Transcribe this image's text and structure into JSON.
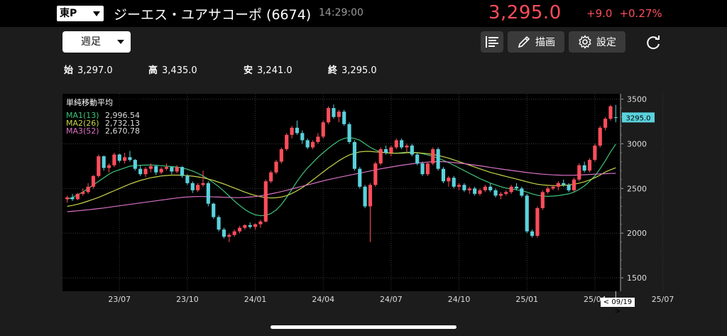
{
  "header": {
    "market": "東P",
    "stock_name": "ジーエス・ユアサコーポ (6674)",
    "time": "14:29:00",
    "price": "3,295.0",
    "change_abs": "+9.0",
    "change_pct": "+0.27%"
  },
  "toolbar": {
    "period": "週足",
    "draw_label": "描画",
    "settings_label": "設定"
  },
  "ohlc": {
    "open_label": "始",
    "open": "3,297.0",
    "high_label": "高",
    "high": "3,435.0",
    "low_label": "安",
    "low": "3,241.0",
    "close_label": "終",
    "close": "3,295.0"
  },
  "legend": {
    "title": "単純移動平均",
    "ma1_label": "MA1(13)",
    "ma1_value": "2,996.54",
    "ma2_label": "MA2(26)",
    "ma2_value": "2,732.13",
    "ma3_label": "MA3(52)",
    "ma3_value": "2,670.78"
  },
  "date_tag": "< 09/19 >",
  "colors": {
    "up": "#ff4d5b",
    "down": "#5ad2dc",
    "ma1": "#3ec47a",
    "ma2": "#c9d64a",
    "ma3": "#d972c6"
  },
  "chart_data": {
    "type": "candlestick",
    "current_price_label": "3295.0",
    "ylim": [
      1350,
      3560
    ],
    "y_ticks": [
      1500,
      2000,
      2500,
      3000,
      3500
    ],
    "x_ticks": [
      {
        "label": "23/07",
        "index": 10
      },
      {
        "label": "23/10",
        "index": 23
      },
      {
        "label": "24/01",
        "index": 36
      },
      {
        "label": "24/04",
        "index": 49
      },
      {
        "label": "24/07",
        "index": 62
      },
      {
        "label": "24/10",
        "index": 75
      },
      {
        "label": "25/01",
        "index": 88
      },
      {
        "label": "25/04",
        "index": 101
      },
      {
        "label": "25/07",
        "index": 114
      }
    ],
    "candles": [
      [
        2380,
        2420,
        2340,
        2400
      ],
      [
        2400,
        2440,
        2360,
        2380
      ],
      [
        2380,
        2450,
        2370,
        2440
      ],
      [
        2440,
        2500,
        2420,
        2460
      ],
      [
        2460,
        2560,
        2440,
        2520
      ],
      [
        2520,
        2650,
        2500,
        2640
      ],
      [
        2640,
        2880,
        2620,
        2860
      ],
      [
        2860,
        2870,
        2700,
        2730
      ],
      [
        2730,
        2780,
        2680,
        2760
      ],
      [
        2760,
        2900,
        2740,
        2880
      ],
      [
        2880,
        2890,
        2790,
        2810
      ],
      [
        2810,
        2900,
        2780,
        2850
      ],
      [
        2850,
        2920,
        2800,
        2820
      ],
      [
        2820,
        2830,
        2700,
        2720
      ],
      [
        2720,
        2760,
        2640,
        2660
      ],
      [
        2660,
        2740,
        2630,
        2720
      ],
      [
        2720,
        2780,
        2680,
        2750
      ],
      [
        2750,
        2760,
        2650,
        2680
      ],
      [
        2680,
        2740,
        2660,
        2720
      ],
      [
        2720,
        2780,
        2700,
        2740
      ],
      [
        2740,
        2750,
        2660,
        2690
      ],
      [
        2690,
        2760,
        2670,
        2740
      ],
      [
        2740,
        2750,
        2620,
        2640
      ],
      [
        2640,
        2660,
        2540,
        2560
      ],
      [
        2560,
        2580,
        2450,
        2480
      ],
      [
        2480,
        2560,
        2460,
        2540
      ],
      [
        2540,
        2700,
        2520,
        2560
      ],
      [
        2560,
        2580,
        2300,
        2330
      ],
      [
        2330,
        2340,
        2160,
        2180
      ],
      [
        2180,
        2200,
        2020,
        2040
      ],
      [
        2040,
        2060,
        1940,
        1960
      ],
      [
        1960,
        2000,
        1900,
        1980
      ],
      [
        1980,
        2040,
        1960,
        2020
      ],
      [
        2020,
        2080,
        2000,
        2060
      ],
      [
        2060,
        2100,
        2040,
        2090
      ],
      [
        2090,
        2120,
        2050,
        2070
      ],
      [
        2070,
        2110,
        2040,
        2100
      ],
      [
        2100,
        2150,
        2060,
        2130
      ],
      [
        2130,
        2600,
        2120,
        2580
      ],
      [
        2580,
        2700,
        2560,
        2680
      ],
      [
        2680,
        2820,
        2660,
        2800
      ],
      [
        2800,
        2960,
        2780,
        2940
      ],
      [
        2940,
        3120,
        2920,
        3100
      ],
      [
        3100,
        3200,
        3060,
        3180
      ],
      [
        3180,
        3260,
        3100,
        3120
      ],
      [
        3120,
        3150,
        3000,
        3040
      ],
      [
        3040,
        3060,
        2940,
        2960
      ],
      [
        2960,
        3040,
        2940,
        3020
      ],
      [
        3020,
        3120,
        3000,
        3080
      ],
      [
        3080,
        3260,
        3060,
        3240
      ],
      [
        3240,
        3420,
        3220,
        3400
      ],
      [
        3400,
        3440,
        3280,
        3300
      ],
      [
        3300,
        3380,
        3240,
        3360
      ],
      [
        3360,
        3380,
        3200,
        3220
      ],
      [
        3220,
        3240,
        3000,
        3020
      ],
      [
        3020,
        3040,
        2700,
        2720
      ],
      [
        2720,
        2740,
        2500,
        2520
      ],
      [
        2520,
        2540,
        2280,
        2300
      ],
      [
        2300,
        2560,
        1900,
        2540
      ],
      [
        2540,
        2800,
        2520,
        2780
      ],
      [
        2780,
        2960,
        2760,
        2940
      ],
      [
        2940,
        2980,
        2880,
        2900
      ],
      [
        2900,
        2980,
        2860,
        2960
      ],
      [
        2960,
        3060,
        2940,
        3040
      ],
      [
        3040,
        3060,
        2940,
        2960
      ],
      [
        2960,
        3000,
        2900,
        2980
      ],
      [
        2980,
        3000,
        2860,
        2880
      ],
      [
        2880,
        2900,
        2760,
        2780
      ],
      [
        2780,
        2800,
        2640,
        2660
      ],
      [
        2660,
        2800,
        2640,
        2780
      ],
      [
        2780,
        2960,
        2760,
        2940
      ],
      [
        2940,
        2960,
        2700,
        2720
      ],
      [
        2720,
        2740,
        2560,
        2580
      ],
      [
        2580,
        2640,
        2520,
        2620
      ],
      [
        2620,
        2640,
        2500,
        2520
      ],
      [
        2520,
        2560,
        2480,
        2540
      ],
      [
        2540,
        2560,
        2460,
        2480
      ],
      [
        2480,
        2520,
        2440,
        2500
      ],
      [
        2500,
        2520,
        2420,
        2440
      ],
      [
        2440,
        2500,
        2420,
        2480
      ],
      [
        2480,
        2540,
        2460,
        2520
      ],
      [
        2520,
        2560,
        2460,
        2480
      ],
      [
        2480,
        2500,
        2400,
        2420
      ],
      [
        2420,
        2460,
        2380,
        2440
      ],
      [
        2440,
        2480,
        2420,
        2460
      ],
      [
        2460,
        2540,
        2440,
        2520
      ],
      [
        2520,
        2560,
        2480,
        2500
      ],
      [
        2500,
        2520,
        2400,
        2420
      ],
      [
        2420,
        2440,
        2000,
        2020
      ],
      [
        2020,
        2040,
        1950,
        1970
      ],
      [
        1970,
        2300,
        1950,
        2280
      ],
      [
        2280,
        2480,
        2260,
        2460
      ],
      [
        2460,
        2520,
        2440,
        2500
      ],
      [
        2500,
        2540,
        2480,
        2520
      ],
      [
        2520,
        2580,
        2480,
        2560
      ],
      [
        2560,
        2600,
        2520,
        2540
      ],
      [
        2540,
        2560,
        2460,
        2480
      ],
      [
        2480,
        2620,
        2460,
        2600
      ],
      [
        2600,
        2780,
        2580,
        2760
      ],
      [
        2760,
        2800,
        2680,
        2700
      ],
      [
        2700,
        2840,
        2680,
        2820
      ],
      [
        2820,
        3000,
        2800,
        2980
      ],
      [
        2980,
        3200,
        2960,
        3180
      ],
      [
        3180,
        3300,
        3150,
        3280
      ],
      [
        3280,
        3435,
        3260,
        3420
      ],
      [
        3297,
        3435,
        3241,
        3295
      ]
    ],
    "ma_series": [
      {
        "name": "MA1(13)",
        "values": [
          2380,
          2400,
          2430,
          2460,
          2500,
          2540,
          2580,
          2620,
          2660,
          2690,
          2710,
          2730,
          2750,
          2755,
          2760,
          2762,
          2763,
          2760,
          2755,
          2750,
          2745,
          2740,
          2730,
          2715,
          2695,
          2670,
          2640,
          2605,
          2565,
          2520,
          2470,
          2415,
          2360,
          2310,
          2265,
          2230,
          2205,
          2195,
          2200,
          2220,
          2260,
          2320,
          2400,
          2490,
          2580,
          2660,
          2730,
          2790,
          2850,
          2900,
          2950,
          2995,
          3035,
          3060,
          3070,
          3060,
          3040,
          3000,
          2960,
          2930,
          2910,
          2900,
          2895,
          2895,
          2900,
          2905,
          2905,
          2900,
          2890,
          2875,
          2860,
          2840,
          2815,
          2790,
          2760,
          2730,
          2700,
          2670,
          2640,
          2610,
          2585,
          2560,
          2540,
          2520,
          2505,
          2495,
          2485,
          2475,
          2460,
          2440,
          2425,
          2415,
          2412,
          2415,
          2420,
          2430,
          2440,
          2460,
          2490,
          2530,
          2580,
          2640,
          2720,
          2810,
          2910,
          2996
        ]
      },
      {
        "name": "MA2(26)",
        "values": [
          2300,
          2310,
          2325,
          2340,
          2360,
          2380,
          2400,
          2425,
          2450,
          2475,
          2500,
          2525,
          2550,
          2570,
          2590,
          2605,
          2620,
          2630,
          2640,
          2645,
          2650,
          2650,
          2648,
          2644,
          2638,
          2630,
          2620,
          2605,
          2590,
          2570,
          2550,
          2528,
          2505,
          2482,
          2460,
          2440,
          2422,
          2408,
          2398,
          2394,
          2396,
          2405,
          2420,
          2445,
          2475,
          2510,
          2550,
          2595,
          2640,
          2685,
          2730,
          2770,
          2810,
          2845,
          2875,
          2895,
          2910,
          2915,
          2915,
          2910,
          2905,
          2900,
          2895,
          2895,
          2895,
          2900,
          2900,
          2900,
          2895,
          2890,
          2880,
          2870,
          2855,
          2840,
          2820,
          2800,
          2780,
          2760,
          2740,
          2720,
          2700,
          2680,
          2665,
          2650,
          2635,
          2620,
          2605,
          2590,
          2575,
          2560,
          2548,
          2540,
          2535,
          2532,
          2532,
          2535,
          2540,
          2548,
          2560,
          2575,
          2595,
          2620,
          2650,
          2685,
          2710,
          2732
        ]
      },
      {
        "name": "MA3(52)",
        "values": [
          2240,
          2245,
          2250,
          2256,
          2262,
          2268,
          2275,
          2282,
          2290,
          2298,
          2306,
          2314,
          2322,
          2330,
          2338,
          2346,
          2354,
          2362,
          2370,
          2378,
          2386,
          2394,
          2400,
          2405,
          2408,
          2410,
          2410,
          2408,
          2406,
          2404,
          2402,
          2400,
          2398,
          2398,
          2400,
          2404,
          2410,
          2418,
          2428,
          2440,
          2452,
          2465,
          2480,
          2495,
          2510,
          2525,
          2540,
          2555,
          2570,
          2585,
          2600,
          2612,
          2624,
          2636,
          2648,
          2660,
          2672,
          2684,
          2696,
          2708,
          2720,
          2730,
          2740,
          2750,
          2760,
          2768,
          2776,
          2784,
          2790,
          2795,
          2800,
          2802,
          2800,
          2796,
          2790,
          2784,
          2778,
          2770,
          2762,
          2754,
          2745,
          2736,
          2727,
          2718,
          2710,
          2702,
          2694,
          2686,
          2678,
          2672,
          2666,
          2660,
          2656,
          2652,
          2650,
          2648,
          2648,
          2649,
          2651,
          2654,
          2657,
          2660,
          2663,
          2666,
          2668,
          2670
        ]
      }
    ]
  }
}
